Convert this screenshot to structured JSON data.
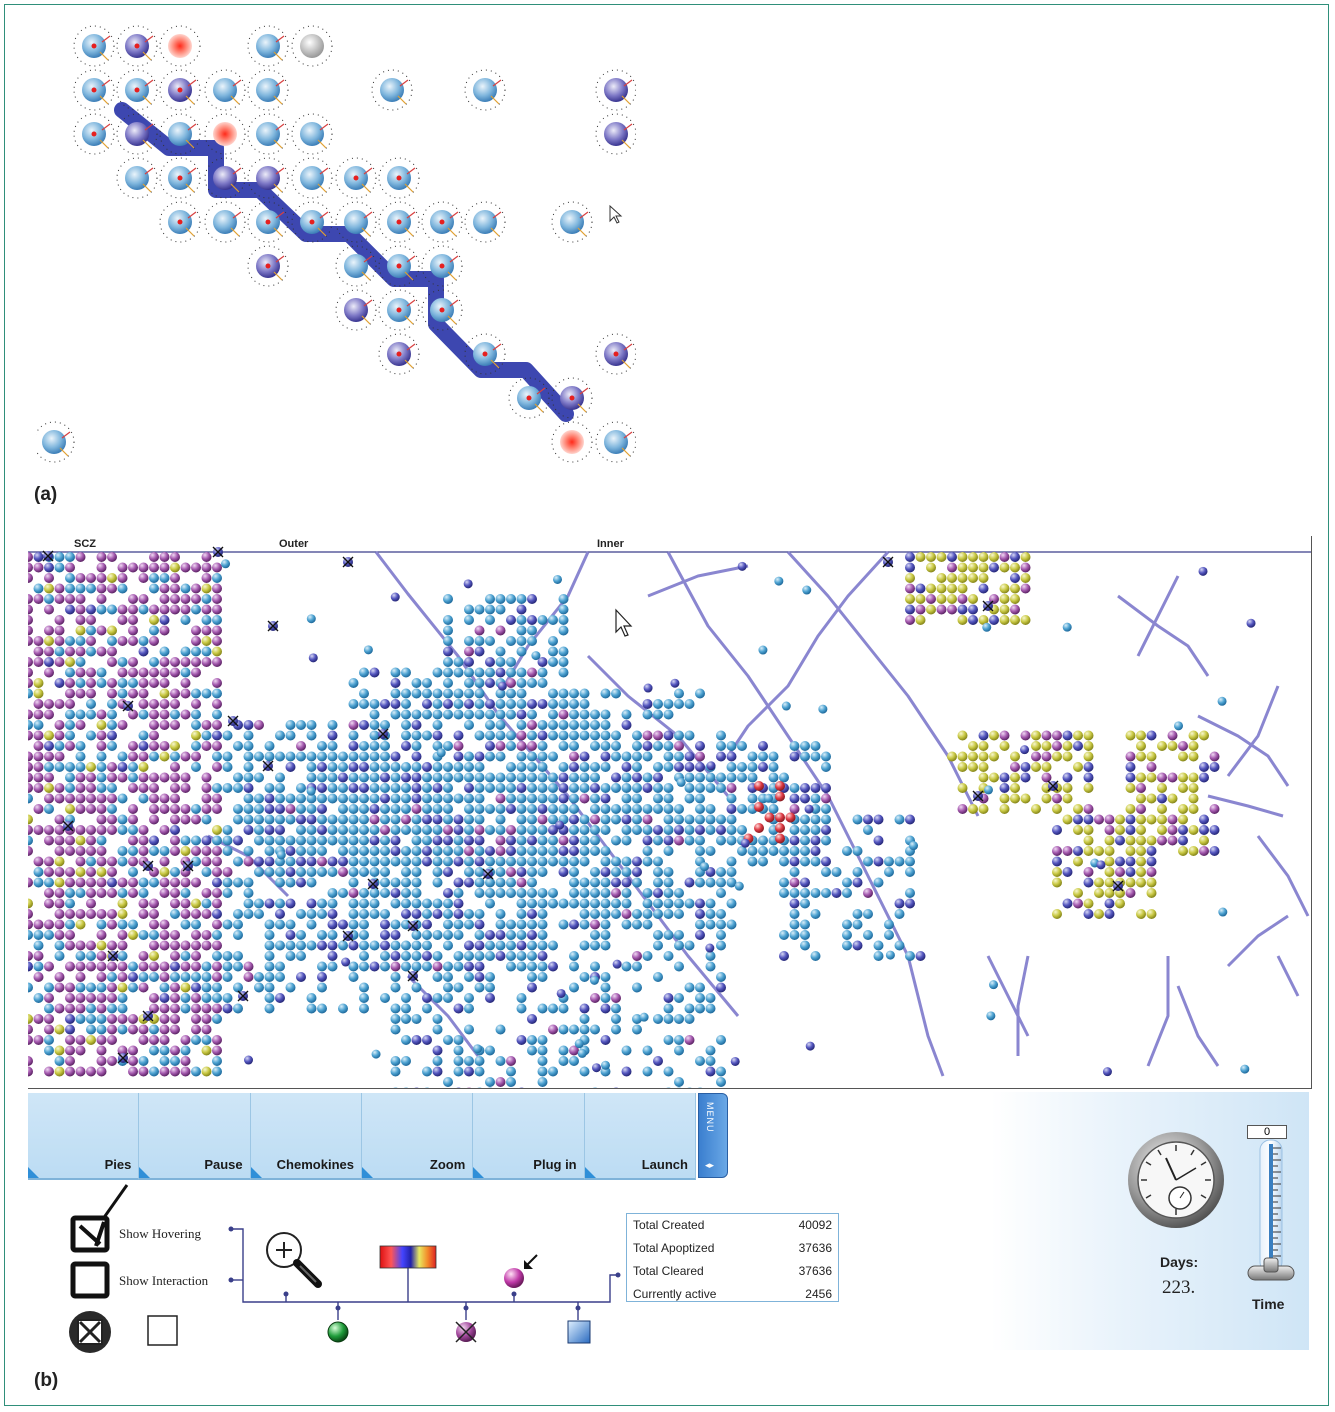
{
  "panel_labels": {
    "a": "(a)",
    "b": "(b)"
  },
  "zones": {
    "z1": "SCZ",
    "z2": "Outer",
    "z3": "Inner"
  },
  "menu": {
    "buttons": [
      {
        "id": "pies",
        "label": "Pies"
      },
      {
        "id": "pause",
        "label": "Pause"
      },
      {
        "id": "chemokines",
        "label": "Chemokines"
      },
      {
        "id": "zoom",
        "label": "Zoom"
      },
      {
        "id": "plugin",
        "label": "Plug in"
      },
      {
        "id": "launch",
        "label": "Launch"
      }
    ],
    "tab_label": "MENU"
  },
  "options": {
    "show_hovering": "Show Hovering",
    "show_interaction": "Show Interaction",
    "show_hovering_checked": true,
    "show_interaction_checked": false
  },
  "stats": {
    "rows": [
      {
        "label": "Total Created",
        "value": "40092"
      },
      {
        "label": "Total Apoptized",
        "value": "37636"
      },
      {
        "label": "Total Cleared",
        "value": "37636"
      },
      {
        "label": "Currently active",
        "value": "2456"
      }
    ]
  },
  "time": {
    "counter": "0",
    "days_label": "Days:",
    "days_value": "223.",
    "time_label": "Time"
  },
  "colors": {
    "frame": "#2f8f7a",
    "cell_blue": "#4a9fd0",
    "cell_dark": "#4a4fb8",
    "cell_purple": "#9a4aa6",
    "cell_yellow": "#c8c83a",
    "cell_red": "#d8333a",
    "vessel": "#8a86d0",
    "path": "#3d47b0"
  },
  "icons": {
    "zoom": "magnifier-icon",
    "heatmap": "color-gradient-icon",
    "pointer": "pointer-cell-icon",
    "green": "green-cell-icon",
    "dead": "crossed-cell-icon",
    "square": "gradient-square-icon",
    "clock": "clock-icon",
    "slider": "time-slider-icon"
  }
}
